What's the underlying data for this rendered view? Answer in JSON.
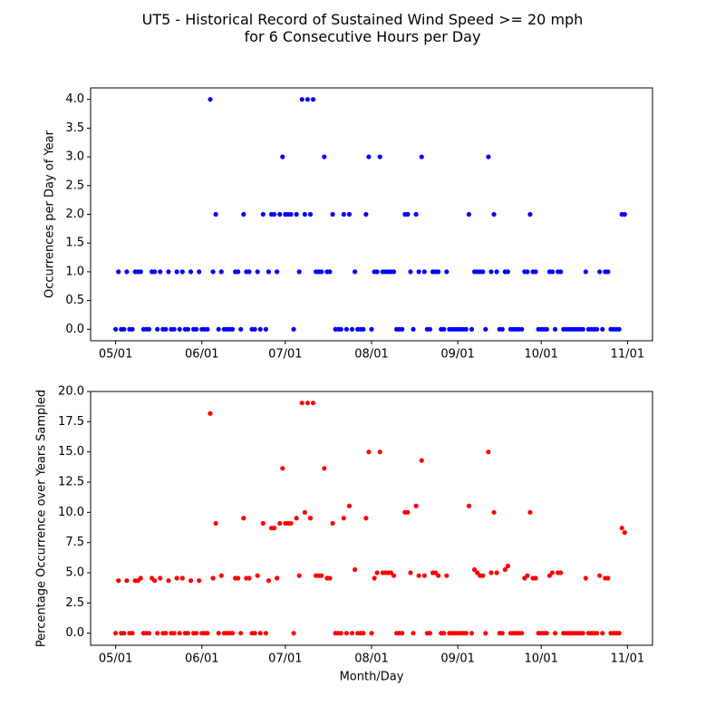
{
  "title": "UT5 - Historical Record of Sustained Wind Speed >= 20 mph\nfor 6 Consecutive Hours per Day",
  "chart_data": [
    {
      "type": "scatter",
      "ylabel": "Occurrences per Day of Year",
      "color": "#0000ff",
      "x": [
        "05/01",
        "05/02",
        "05/03",
        "05/04",
        "05/05",
        "05/06",
        "05/07",
        "05/08",
        "05/09",
        "05/10",
        "05/11",
        "05/12",
        "05/13",
        "05/14",
        "05/15",
        "05/16",
        "05/17",
        "05/18",
        "05/19",
        "05/20",
        "05/21",
        "05/22",
        "05/23",
        "05/24",
        "05/25",
        "05/26",
        "05/27",
        "05/28",
        "05/29",
        "05/30",
        "05/31",
        "06/01",
        "06/02",
        "06/03",
        "06/04",
        "06/05",
        "06/06",
        "06/07",
        "06/08",
        "06/09",
        "06/10",
        "06/11",
        "06/12",
        "06/13",
        "06/14",
        "06/15",
        "06/16",
        "06/17",
        "06/18",
        "06/19",
        "06/20",
        "06/21",
        "06/22",
        "06/23",
        "06/24",
        "06/25",
        "06/26",
        "06/27",
        "06/28",
        "06/29",
        "06/30",
        "07/01",
        "07/02",
        "07/03",
        "07/04",
        "07/05",
        "07/06",
        "07/07",
        "07/08",
        "07/09",
        "07/10",
        "07/11",
        "07/12",
        "07/13",
        "07/14",
        "07/15",
        "07/16",
        "07/17",
        "07/18",
        "07/19",
        "07/20",
        "07/21",
        "07/22",
        "07/23",
        "07/24",
        "07/25",
        "07/26",
        "07/27",
        "07/28",
        "07/29",
        "07/30",
        "07/31",
        "08/01",
        "08/02",
        "08/03",
        "08/04",
        "08/05",
        "08/06",
        "08/07",
        "08/08",
        "08/09",
        "08/10",
        "08/11",
        "08/12",
        "08/13",
        "08/14",
        "08/15",
        "08/16",
        "08/17",
        "08/18",
        "08/19",
        "08/20",
        "08/21",
        "08/22",
        "08/23",
        "08/24",
        "08/25",
        "08/26",
        "08/27",
        "08/28",
        "08/29",
        "08/30",
        "08/31",
        "09/01",
        "09/02",
        "09/03",
        "09/04",
        "09/05",
        "09/06",
        "09/07",
        "09/08",
        "09/09",
        "09/10",
        "09/11",
        "09/12",
        "09/13",
        "09/14",
        "09/15",
        "09/16",
        "09/17",
        "09/18",
        "09/19",
        "09/20",
        "09/21",
        "09/22",
        "09/23",
        "09/24",
        "09/25",
        "09/26",
        "09/27",
        "09/28",
        "09/29",
        "09/30",
        "10/01",
        "10/02",
        "10/03",
        "10/04",
        "10/05",
        "10/06",
        "10/07",
        "10/08",
        "10/09",
        "10/10",
        "10/11",
        "10/12",
        "10/13",
        "10/14",
        "10/15",
        "10/16",
        "10/17",
        "10/18",
        "10/19",
        "10/20",
        "10/21",
        "10/22",
        "10/23",
        "10/24",
        "10/25",
        "10/26",
        "10/27",
        "10/28",
        "10/29",
        "10/30",
        "10/31"
      ],
      "values": [
        0,
        1,
        0,
        0,
        1,
        0,
        0,
        1,
        1,
        1,
        0,
        0,
        0,
        1,
        1,
        0,
        1,
        0,
        0,
        1,
        0,
        0,
        1,
        0,
        1,
        0,
        0,
        1,
        0,
        0,
        1,
        0,
        0,
        0,
        4,
        1,
        2,
        0,
        1,
        0,
        0,
        0,
        0,
        1,
        1,
        0,
        2,
        1,
        1,
        0,
        0,
        1,
        0,
        2,
        0,
        1,
        2,
        2,
        1,
        2,
        3,
        2,
        2,
        2,
        0,
        2,
        1,
        4,
        2,
        4,
        2,
        4,
        1,
        1,
        1,
        3,
        1,
        1,
        2,
        0,
        0,
        0,
        2,
        0,
        2,
        0,
        1,
        0,
        0,
        0,
        2,
        3,
        0,
        1,
        1,
        3,
        1,
        1,
        1,
        1,
        1,
        0,
        0,
        0,
        2,
        2,
        1,
        0,
        2,
        1,
        3,
        1,
        0,
        0,
        1,
        1,
        1,
        0,
        0,
        1,
        0,
        0,
        0,
        0,
        0,
        0,
        0,
        2,
        0,
        1,
        1,
        1,
        1,
        0,
        3,
        1,
        2,
        1,
        0,
        0,
        1,
        1,
        0,
        0,
        0,
        0,
        0,
        1,
        1,
        2,
        1,
        1,
        0,
        0,
        0,
        0,
        1,
        1,
        0,
        1,
        1,
        0,
        0,
        0,
        0,
        0,
        0,
        0,
        0,
        1,
        0,
        0,
        0,
        0,
        1,
        0,
        1,
        1,
        0,
        0,
        0,
        0,
        2,
        2
      ],
      "xlim": [
        "04/22",
        "11/10"
      ],
      "xticks": [
        "05/01",
        "06/01",
        "07/01",
        "08/01",
        "09/01",
        "10/01",
        "11/01"
      ],
      "ylim": [
        -0.2,
        4.2
      ],
      "yticks": [
        {
          "value": 0,
          "label": "0.0"
        },
        {
          "value": 0.5,
          "label": "0.5"
        },
        {
          "value": 1,
          "label": "1.0"
        },
        {
          "value": 1.5,
          "label": "1.5"
        },
        {
          "value": 2,
          "label": "2.0"
        },
        {
          "value": 2.5,
          "label": "2.5"
        },
        {
          "value": 3,
          "label": "3.0"
        },
        {
          "value": 3.5,
          "label": "3.5"
        },
        {
          "value": 4,
          "label": "4.0"
        }
      ]
    },
    {
      "type": "scatter",
      "ylabel": "Percentage Occurrence over Years Sampled",
      "xlabel": "Month/Day",
      "color": "#ff0000",
      "x": [
        "05/01",
        "05/02",
        "05/03",
        "05/04",
        "05/05",
        "05/06",
        "05/07",
        "05/08",
        "05/09",
        "05/10",
        "05/11",
        "05/12",
        "05/13",
        "05/14",
        "05/15",
        "05/16",
        "05/17",
        "05/18",
        "05/19",
        "05/20",
        "05/21",
        "05/22",
        "05/23",
        "05/24",
        "05/25",
        "05/26",
        "05/27",
        "05/28",
        "05/29",
        "05/30",
        "05/31",
        "06/01",
        "06/02",
        "06/03",
        "06/04",
        "06/05",
        "06/06",
        "06/07",
        "06/08",
        "06/09",
        "06/10",
        "06/11",
        "06/12",
        "06/13",
        "06/14",
        "06/15",
        "06/16",
        "06/17",
        "06/18",
        "06/19",
        "06/20",
        "06/21",
        "06/22",
        "06/23",
        "06/24",
        "06/25",
        "06/26",
        "06/27",
        "06/28",
        "06/29",
        "06/30",
        "07/01",
        "07/02",
        "07/03",
        "07/04",
        "07/05",
        "07/06",
        "07/07",
        "07/08",
        "07/09",
        "07/10",
        "07/11",
        "07/12",
        "07/13",
        "07/14",
        "07/15",
        "07/16",
        "07/17",
        "07/18",
        "07/19",
        "07/20",
        "07/21",
        "07/22",
        "07/23",
        "07/24",
        "07/25",
        "07/26",
        "07/27",
        "07/28",
        "07/29",
        "07/30",
        "07/31",
        "08/01",
        "08/02",
        "08/03",
        "08/04",
        "08/05",
        "08/06",
        "08/07",
        "08/08",
        "08/09",
        "08/10",
        "08/11",
        "08/12",
        "08/13",
        "08/14",
        "08/15",
        "08/16",
        "08/17",
        "08/18",
        "08/19",
        "08/20",
        "08/21",
        "08/22",
        "08/23",
        "08/24",
        "08/25",
        "08/26",
        "08/27",
        "08/28",
        "08/29",
        "08/30",
        "08/31",
        "09/01",
        "09/02",
        "09/03",
        "09/04",
        "09/05",
        "09/06",
        "09/07",
        "09/08",
        "09/09",
        "09/10",
        "09/11",
        "09/12",
        "09/13",
        "09/14",
        "09/15",
        "09/16",
        "09/17",
        "09/18",
        "09/19",
        "09/20",
        "09/21",
        "09/22",
        "09/23",
        "09/24",
        "09/25",
        "09/26",
        "09/27",
        "09/28",
        "09/29",
        "09/30",
        "10/01",
        "10/02",
        "10/03",
        "10/04",
        "10/05",
        "10/06",
        "10/07",
        "10/08",
        "10/09",
        "10/10",
        "10/11",
        "10/12",
        "10/13",
        "10/14",
        "10/15",
        "10/16",
        "10/17",
        "10/18",
        "10/19",
        "10/20",
        "10/21",
        "10/22",
        "10/23",
        "10/24",
        "10/25",
        "10/26",
        "10/27",
        "10/28",
        "10/29",
        "10/30",
        "10/31"
      ],
      "values": [
        0,
        4.35,
        0,
        0,
        4.35,
        0,
        0,
        4.35,
        4.35,
        4.55,
        0,
        0,
        0,
        4.55,
        4.35,
        0,
        4.55,
        0,
        0,
        4.35,
        0,
        0,
        4.55,
        0,
        4.55,
        0,
        0,
        4.35,
        0,
        0,
        4.35,
        0,
        0,
        0,
        18.18,
        4.55,
        9.09,
        0,
        4.76,
        0,
        0,
        0,
        0,
        4.55,
        4.55,
        0,
        9.52,
        4.55,
        4.55,
        0,
        0,
        4.76,
        0,
        9.09,
        0,
        4.35,
        8.7,
        8.7,
        4.55,
        9.09,
        13.64,
        9.09,
        9.09,
        9.09,
        0,
        9.52,
        4.76,
        19.05,
        10,
        19.05,
        9.52,
        19.05,
        4.76,
        4.76,
        4.76,
        13.64,
        4.55,
        4.55,
        9.09,
        0,
        0,
        0,
        9.52,
        0,
        10.53,
        0,
        5.26,
        0,
        0,
        0,
        9.52,
        15,
        0,
        4.55,
        5,
        15,
        5,
        5,
        5,
        5,
        4.76,
        0,
        0,
        0,
        10,
        10,
        5,
        0,
        10.53,
        4.76,
        14.29,
        4.76,
        0,
        0,
        5,
        5,
        4.76,
        0,
        0,
        4.76,
        0,
        0,
        0,
        0,
        0,
        0,
        0,
        10.53,
        0,
        5.26,
        5,
        4.76,
        4.76,
        0,
        15,
        5,
        10,
        5,
        0,
        0,
        5.26,
        5.56,
        0,
        0,
        0,
        0,
        0,
        4.55,
        4.76,
        10,
        4.55,
        4.55,
        0,
        0,
        0,
        0,
        4.76,
        5,
        0,
        5,
        5,
        0,
        0,
        0,
        0,
        0,
        0,
        0,
        0,
        4.55,
        0,
        0,
        0,
        0,
        4.76,
        0,
        4.55,
        4.55,
        0,
        0,
        0,
        0,
        8.7,
        8.33
      ],
      "xlim": [
        "04/22",
        "11/10"
      ],
      "xticks": [
        "05/01",
        "06/01",
        "07/01",
        "08/01",
        "09/01",
        "10/01",
        "11/01"
      ],
      "ylim": [
        -1,
        20
      ],
      "yticks": [
        {
          "value": 0,
          "label": "0.0"
        },
        {
          "value": 2.5,
          "label": "2.5"
        },
        {
          "value": 5,
          "label": "5.0"
        },
        {
          "value": 7.5,
          "label": "7.5"
        },
        {
          "value": 10,
          "label": "10.0"
        },
        {
          "value": 12.5,
          "label": "12.5"
        },
        {
          "value": 15,
          "label": "15.0"
        },
        {
          "value": 17.5,
          "label": "17.5"
        },
        {
          "value": 20,
          "label": "20.0"
        }
      ]
    }
  ]
}
